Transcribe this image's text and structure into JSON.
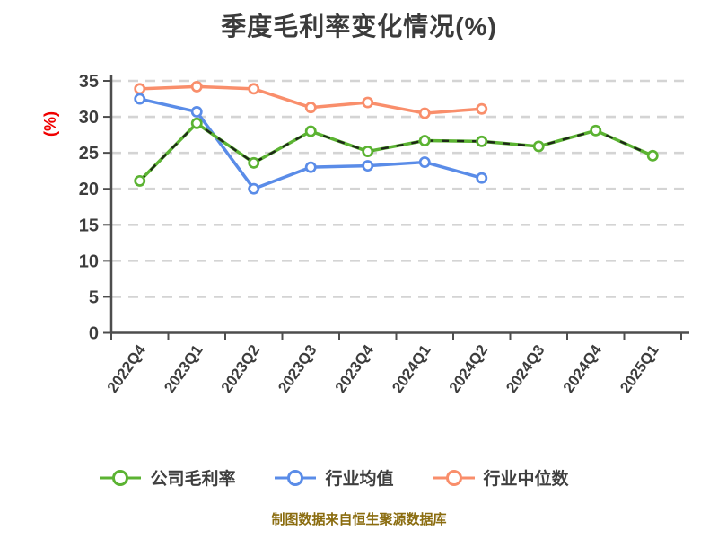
{
  "chart_data": {
    "type": "line",
    "title": "季度毛利率变化情况(%)",
    "ylabel": "(%)",
    "xlabel": "",
    "categories": [
      "2022Q4",
      "2023Q1",
      "2023Q2",
      "2023Q3",
      "2023Q4",
      "2024Q1",
      "2024Q2",
      "2024Q3",
      "2024Q4",
      "2025Q1"
    ],
    "series": [
      {
        "name": "公司毛利率",
        "color": "#5BB332",
        "marker": "circle-open",
        "line_style": "solid-with-dark-dash-overlay",
        "values": [
          21.1,
          29.1,
          23.6,
          28.0,
          25.2,
          26.7,
          26.6,
          25.9,
          28.1,
          24.6
        ]
      },
      {
        "name": "行业均值",
        "color": "#5A8CE8",
        "marker": "circle-open",
        "line_style": "solid",
        "values": [
          32.5,
          30.7,
          20.0,
          23.0,
          23.2,
          23.7,
          21.5
        ]
      },
      {
        "name": "行业中位数",
        "color": "#F98E6B",
        "marker": "circle-open",
        "line_style": "solid",
        "values": [
          33.9,
          34.2,
          33.9,
          31.3,
          32.0,
          30.5,
          31.1
        ]
      }
    ],
    "ylim": [
      0,
      35
    ],
    "yticks": [
      0,
      5,
      10,
      15,
      20,
      25,
      30,
      35
    ],
    "grid": "horizontal-dashed",
    "legend_position": "bottom"
  },
  "footer": {
    "text": "制图数据来自恒生聚源数据库"
  },
  "style_colors": {
    "title_color": "#3B3B3B",
    "ylabel_color": "#F00000",
    "tick_label_color": "#3D3D3D",
    "axis_color": "#4D4D4D",
    "grid_color": "#D4D4D4",
    "marker_fill": "#FFFFFF",
    "green_overlay_dash_color": "#151515",
    "legend_text_color": "#3F3F3F",
    "footer_color": "#8A6C0F"
  }
}
